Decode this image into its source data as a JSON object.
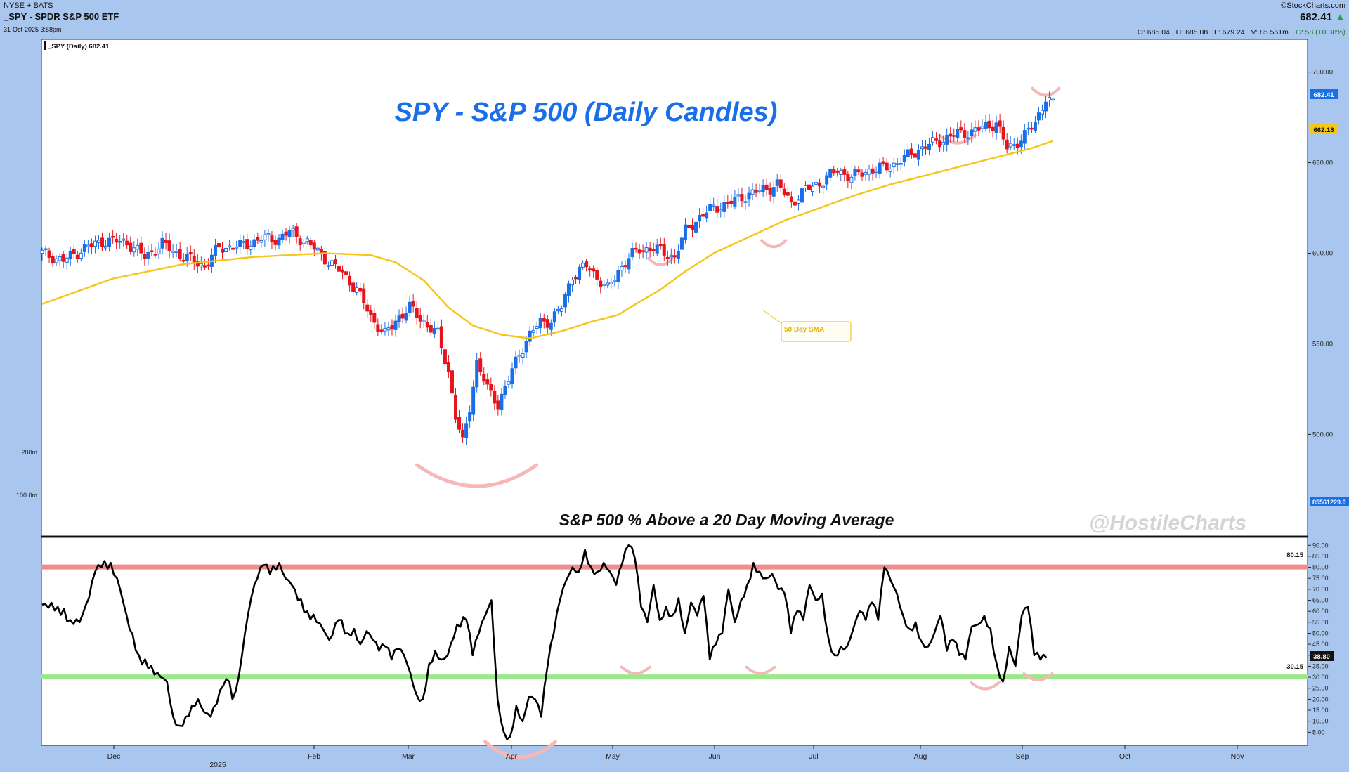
{
  "header": {
    "exchange": "NYSE + BATS",
    "symbol_title": "_SPY - SPDR S&P 500 ETF",
    "timestamp": "31-Oct-2025 3:58pm",
    "brand": "©StockCharts.com",
    "last_price": "682.41",
    "ohlc": {
      "open": "O: 685.04",
      "high": "H: 685.08",
      "low": "L: 679.24",
      "volume": "V: 85.561m",
      "change": "+2.58 (+0.38%)"
    }
  },
  "price_panel": {
    "legend": "_SPY (Daily) 682.41",
    "title": "SPY - S&P 500 (Daily Candles)",
    "sma_label": "50 Day SMA",
    "last_price_tag": "682.41",
    "sma_tag": "662.18",
    "volume_tag": "85561229.0",
    "volume_labels": [
      "200m",
      "100.0m"
    ]
  },
  "breadth_panel": {
    "title": "S&P 500 % Above a 20 Day Moving Average",
    "watermark": "@HostileCharts",
    "upper_line_label": "80.15",
    "lower_line_label": "30.15",
    "last_value_tag": "38.80"
  },
  "chart_data": [
    {
      "type": "line",
      "title": "SPY - S&P 500 (Daily Candles)",
      "ylim": [
        480,
        708
      ],
      "yticks": [
        "700.00",
        "650.00",
        "600.00",
        "550.00",
        "500.00"
      ],
      "x_labels": [
        "Dec",
        "2025",
        "Feb",
        "Mar",
        "Apr",
        "May",
        "Jun",
        "Jul",
        "Aug",
        "Sep",
        "Oct",
        "Nov"
      ],
      "series": [
        {
          "name": "_SPY (Daily) 682.41",
          "style": "candles",
          "color_up": "#1a6fe8",
          "color_down": "#e8141c",
          "anchors": [
            [
              0,
              600
            ],
            [
              6,
              596
            ],
            [
              12,
              603
            ],
            [
              18,
              607
            ],
            [
              24,
              606
            ],
            [
              29,
              598
            ],
            [
              34,
              605
            ],
            [
              40,
              598
            ],
            [
              46,
              593
            ],
            [
              50,
              603
            ],
            [
              56,
              604
            ],
            [
              62,
              608
            ],
            [
              67,
              608
            ],
            [
              70,
              612
            ],
            [
              75,
              606
            ],
            [
              79,
              599
            ],
            [
              85,
              589
            ],
            [
              89,
              580
            ],
            [
              93,
              565
            ],
            [
              97,
              555
            ],
            [
              101,
              565
            ],
            [
              104,
              570
            ],
            [
              108,
              562
            ],
            [
              112,
              555
            ],
            [
              115,
              535
            ],
            [
              117,
              510
            ],
            [
              119,
              495
            ],
            [
              121,
              515
            ],
            [
              123,
              540
            ],
            [
              126,
              525
            ],
            [
              129,
              517
            ],
            [
              132,
              530
            ],
            [
              135,
              545
            ],
            [
              138,
              555
            ],
            [
              141,
              562
            ],
            [
              144,
              563
            ],
            [
              147,
              570
            ],
            [
              150,
              588
            ],
            [
              154,
              593
            ],
            [
              157,
              587
            ],
            [
              160,
              580
            ],
            [
              163,
              590
            ],
            [
              166,
              598
            ],
            [
              169,
              602
            ],
            [
              173,
              603
            ],
            [
              176,
              600
            ],
            [
              179,
              598
            ],
            [
              182,
              612
            ],
            [
              186,
              620
            ],
            [
              190,
              625
            ],
            [
              195,
              628
            ],
            [
              199,
              632
            ],
            [
              204,
              635
            ],
            [
              208,
              638
            ],
            [
              212,
              628
            ],
            [
              216,
              635
            ],
            [
              221,
              640
            ],
            [
              225,
              646
            ],
            [
              229,
              642
            ],
            [
              234,
              646
            ],
            [
              238,
              647
            ],
            [
              242,
              650
            ],
            [
              246,
              655
            ],
            [
              250,
              659
            ],
            [
              255,
              663
            ],
            [
              259,
              666
            ],
            [
              263,
              667
            ],
            [
              267,
              670
            ],
            [
              270,
              672
            ],
            [
              273,
              658
            ],
            [
              275,
              660
            ],
            [
              278,
              665
            ],
            [
              281,
              672
            ],
            [
              284,
              686
            ],
            [
              286,
              682
            ]
          ]
        },
        {
          "name": "50 Day SMA",
          "color": "#f5c518",
          "anchors": [
            [
              0,
              572
            ],
            [
              20,
              586
            ],
            [
              40,
              594
            ],
            [
              60,
              598
            ],
            [
              80,
              600
            ],
            [
              93,
              599
            ],
            [
              100,
              595
            ],
            [
              108,
              585
            ],
            [
              115,
              570
            ],
            [
              122,
              560
            ],
            [
              130,
              555
            ],
            [
              138,
              553
            ],
            [
              147,
              557
            ],
            [
              155,
              562
            ],
            [
              163,
              566
            ],
            [
              168,
              572
            ],
            [
              175,
              580
            ],
            [
              182,
              590
            ],
            [
              190,
              600
            ],
            [
              200,
              609
            ],
            [
              210,
              618
            ],
            [
              220,
              625
            ],
            [
              230,
              632
            ],
            [
              240,
              638
            ],
            [
              250,
              643
            ],
            [
              260,
              648
            ],
            [
              270,
              653
            ],
            [
              280,
              658
            ],
            [
              286,
              662
            ]
          ]
        }
      ]
    },
    {
      "type": "line",
      "title": "S&P 500 % Above a 20 Day Moving Average",
      "ylim": [
        0,
        92
      ],
      "yticks": [
        "90.00",
        "85.00",
        "80.00",
        "75.00",
        "70.00",
        "65.00",
        "60.00",
        "55.00",
        "50.00",
        "45.00",
        "40.00",
        "35.00",
        "30.00",
        "25.00",
        "20.00",
        "15.00",
        "10.00",
        "5.00"
      ],
      "reference_lines": [
        {
          "value": 80.15,
          "color": "#f08c8c"
        },
        {
          "value": 30.15,
          "color": "#9be88a"
        }
      ],
      "series": [
        {
          "name": "",
          "color": "#000000",
          "anchors": [
            [
              0,
              63
            ],
            [
              5,
              62
            ],
            [
              9,
              56
            ],
            [
              12,
              55
            ],
            [
              15,
              66
            ],
            [
              17,
              78
            ],
            [
              19,
              80
            ],
            [
              22,
              82
            ],
            [
              25,
              70
            ],
            [
              28,
              52
            ],
            [
              31,
              40
            ],
            [
              34,
              34
            ],
            [
              37,
              32
            ],
            [
              40,
              28
            ],
            [
              42,
              12
            ],
            [
              44,
              8
            ],
            [
              46,
              12
            ],
            [
              48,
              17
            ],
            [
              50,
              20
            ],
            [
              52,
              14
            ],
            [
              54,
              12
            ],
            [
              56,
              18
            ],
            [
              58,
              26
            ],
            [
              60,
              28
            ],
            [
              61,
              20
            ],
            [
              63,
              30
            ],
            [
              65,
              50
            ],
            [
              67,
              66
            ],
            [
              69,
              75
            ],
            [
              71,
              81
            ],
            [
              73,
              77
            ],
            [
              76,
              82
            ],
            [
              78,
              75
            ],
            [
              80,
              72
            ],
            [
              82,
              65
            ],
            [
              85,
              60
            ],
            [
              88,
              55
            ],
            [
              90,
              52
            ],
            [
              92,
              47
            ],
            [
              95,
              56
            ],
            [
              98,
              50
            ],
            [
              100,
              52
            ],
            [
              102,
              45
            ],
            [
              104,
              51
            ],
            [
              106,
              47
            ],
            [
              108,
              42
            ],
            [
              110,
              44
            ],
            [
              112,
              38
            ],
            [
              114,
              43
            ],
            [
              116,
              40
            ],
            [
              118,
              32
            ],
            [
              120,
              22
            ],
            [
              122,
              20
            ],
            [
              124,
              36
            ],
            [
              126,
              42
            ],
            [
              128,
              38
            ],
            [
              130,
              40
            ],
            [
              133,
              54
            ],
            [
              136,
              56
            ],
            [
              138,
              40
            ],
            [
              140,
              50
            ],
            [
              142,
              58
            ],
            [
              144,
              65
            ],
            [
              146,
              20
            ],
            [
              148,
              5
            ],
            [
              150,
              3
            ],
            [
              152,
              17
            ],
            [
              154,
              10
            ],
            [
              156,
              21
            ],
            [
              158,
              20
            ],
            [
              160,
              12
            ],
            [
              162,
              35
            ],
            [
              164,
              50
            ],
            [
              166,
              65
            ],
            [
              168,
              74
            ],
            [
              170,
              80
            ],
            [
              172,
              78
            ],
            [
              174,
              88
            ],
            [
              176,
              80
            ],
            [
              178,
              78
            ],
            [
              180,
              82
            ],
            [
              182,
              78
            ],
            [
              184,
              72
            ],
            [
              186,
              82
            ],
            [
              188,
              90
            ],
            [
              190,
              84
            ],
            [
              192,
              62
            ],
            [
              194,
              55
            ],
            [
              196,
              72
            ],
            [
              198,
              56
            ],
            [
              200,
              62
            ],
            [
              202,
              58
            ],
            [
              204,
              66
            ],
            [
              206,
              50
            ],
            [
              208,
              64
            ],
            [
              210,
              58
            ],
            [
              212,
              67
            ],
            [
              214,
              38
            ],
            [
              216,
              45
            ],
            [
              218,
              50
            ],
            [
              220,
              70
            ],
            [
              222,
              55
            ],
            [
              224,
              65
            ],
            [
              226,
              72
            ],
            [
              228,
              82
            ],
            [
              230,
              78
            ],
            [
              232,
              75
            ],
            [
              234,
              77
            ],
            [
              236,
              70
            ],
            [
              238,
              68
            ],
            [
              240,
              50
            ],
            [
              242,
              60
            ],
            [
              244,
              56
            ],
            [
              246,
              72
            ],
            [
              248,
              65
            ],
            [
              250,
              68
            ],
            [
              252,
              48
            ],
            [
              254,
              40
            ],
            [
              256,
              44
            ],
            [
              258,
              44
            ],
            [
              260,
              52
            ],
            [
              262,
              60
            ],
            [
              264,
              56
            ],
            [
              266,
              64
            ],
            [
              268,
              56
            ],
            [
              270,
              80
            ],
            [
              272,
              74
            ],
            [
              274,
              68
            ],
            [
              276,
              58
            ],
            [
              278,
              52
            ],
            [
              280,
              55
            ],
            [
              282,
              46
            ],
            [
              284,
              44
            ],
            [
              286,
              50
            ],
            [
              288,
              58
            ],
            [
              290,
              42
            ],
            [
              292,
              47
            ],
            [
              294,
              40
            ],
            [
              296,
              38
            ],
            [
              298,
              53
            ],
            [
              300,
              54
            ],
            [
              302,
              58
            ],
            [
              304,
              52
            ],
            [
              306,
              36
            ],
            [
              308,
              28
            ],
            [
              310,
              44
            ],
            [
              312,
              35
            ],
            [
              314,
              58
            ],
            [
              316,
              62
            ],
            [
              318,
              40
            ],
            [
              320,
              38
            ],
            [
              322,
              38.8
            ]
          ]
        }
      ]
    }
  ],
  "colors": {
    "background": "#a9c6ef",
    "panel": "#ffffff",
    "title_blue": "#1a6fe8",
    "candle_up": "#1a6fe8",
    "candle_down": "#e8141c",
    "sma": "#f5c518",
    "upper_band": "#f08c8c",
    "lower_band": "#9be88a",
    "annotation_arc": "#f4b8b8"
  }
}
